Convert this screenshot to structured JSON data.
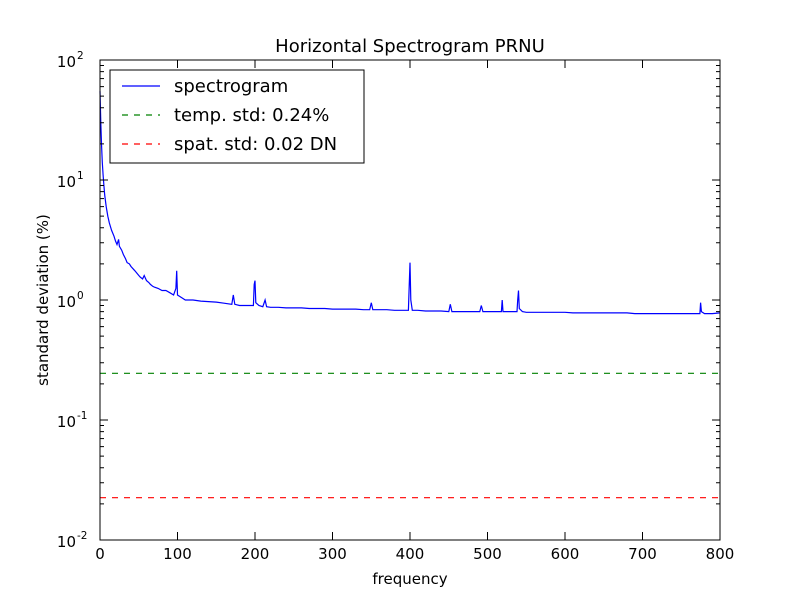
{
  "chart_data": {
    "type": "line",
    "title": "Horizontal Spectrogram PRNU",
    "xlabel": "frequency",
    "ylabel": "standard deviation (%)",
    "xlim": [
      0,
      800
    ],
    "ylim": [
      0.01,
      100
    ],
    "yscale": "log",
    "grid": false,
    "legend_position": "top-left",
    "x_ticks": [
      "0",
      "100",
      "200",
      "300",
      "400",
      "500",
      "600",
      "700",
      "800"
    ],
    "y_ticks": [
      {
        "base": "10",
        "exp": "-2",
        "value": 0.01
      },
      {
        "base": "10",
        "exp": "-1",
        "value": 0.1
      },
      {
        "base": "10",
        "exp": "0",
        "value": 1
      },
      {
        "base": "10",
        "exp": "1",
        "value": 10
      },
      {
        "base": "10",
        "exp": "2",
        "value": 100
      }
    ],
    "series": [
      {
        "name": "spectrogram",
        "style": "solid",
        "color": "#0000ff",
        "points": [
          [
            0,
            55
          ],
          [
            1,
            30
          ],
          [
            2,
            20
          ],
          [
            3,
            14
          ],
          [
            4,
            11
          ],
          [
            5,
            9
          ],
          [
            6,
            7.5
          ],
          [
            8,
            6
          ],
          [
            10,
            5
          ],
          [
            12,
            4.4
          ],
          [
            15,
            3.8
          ],
          [
            18,
            3.4
          ],
          [
            20,
            3.1
          ],
          [
            22,
            2.9
          ],
          [
            24,
            3.2
          ],
          [
            25,
            2.8
          ],
          [
            28,
            2.6
          ],
          [
            30,
            2.4
          ],
          [
            33,
            2.2
          ],
          [
            35,
            2.05
          ],
          [
            38,
            2.0
          ],
          [
            40,
            1.9
          ],
          [
            45,
            1.75
          ],
          [
            50,
            1.6
          ],
          [
            52,
            1.55
          ],
          [
            55,
            1.5
          ],
          [
            57,
            1.6
          ],
          [
            60,
            1.45
          ],
          [
            63,
            1.4
          ],
          [
            65,
            1.35
          ],
          [
            68,
            1.3
          ],
          [
            70,
            1.28
          ],
          [
            75,
            1.25
          ],
          [
            80,
            1.2
          ],
          [
            85,
            1.2
          ],
          [
            90,
            1.15
          ],
          [
            95,
            1.1
          ],
          [
            98,
            1.25
          ],
          [
            99,
            1.75
          ],
          [
            100,
            1.1
          ],
          [
            105,
            1.05
          ],
          [
            110,
            1.0
          ],
          [
            120,
            1.0
          ],
          [
            130,
            0.98
          ],
          [
            140,
            0.97
          ],
          [
            150,
            0.96
          ],
          [
            160,
            0.94
          ],
          [
            170,
            0.92
          ],
          [
            172,
            1.1
          ],
          [
            174,
            0.92
          ],
          [
            180,
            0.9
          ],
          [
            190,
            0.9
          ],
          [
            198,
            0.9
          ],
          [
            199,
            1.35
          ],
          [
            200,
            1.45
          ],
          [
            201,
            0.95
          ],
          [
            205,
            0.9
          ],
          [
            210,
            0.88
          ],
          [
            213,
            1.0
          ],
          [
            215,
            0.88
          ],
          [
            220,
            0.87
          ],
          [
            230,
            0.87
          ],
          [
            240,
            0.86
          ],
          [
            250,
            0.86
          ],
          [
            260,
            0.86
          ],
          [
            270,
            0.85
          ],
          [
            280,
            0.85
          ],
          [
            290,
            0.85
          ],
          [
            300,
            0.84
          ],
          [
            310,
            0.84
          ],
          [
            320,
            0.84
          ],
          [
            330,
            0.84
          ],
          [
            340,
            0.83
          ],
          [
            348,
            0.83
          ],
          [
            350,
            0.95
          ],
          [
            352,
            0.83
          ],
          [
            360,
            0.83
          ],
          [
            370,
            0.83
          ],
          [
            380,
            0.82
          ],
          [
            390,
            0.82
          ],
          [
            398,
            0.82
          ],
          [
            399,
            1.3
          ],
          [
            400,
            2.05
          ],
          [
            401,
            1.0
          ],
          [
            403,
            0.82
          ],
          [
            410,
            0.82
          ],
          [
            420,
            0.81
          ],
          [
            430,
            0.81
          ],
          [
            440,
            0.81
          ],
          [
            450,
            0.8
          ],
          [
            452,
            0.92
          ],
          [
            454,
            0.8
          ],
          [
            460,
            0.8
          ],
          [
            470,
            0.8
          ],
          [
            480,
            0.8
          ],
          [
            490,
            0.8
          ],
          [
            492,
            0.9
          ],
          [
            494,
            0.8
          ],
          [
            500,
            0.8
          ],
          [
            510,
            0.8
          ],
          [
            518,
            0.8
          ],
          [
            519,
            1.0
          ],
          [
            520,
            0.8
          ],
          [
            530,
            0.8
          ],
          [
            538,
            0.8
          ],
          [
            539,
            1.0
          ],
          [
            540,
            1.2
          ],
          [
            541,
            0.85
          ],
          [
            545,
            0.8
          ],
          [
            550,
            0.79
          ],
          [
            560,
            0.79
          ],
          [
            570,
            0.79
          ],
          [
            580,
            0.79
          ],
          [
            590,
            0.79
          ],
          [
            600,
            0.79
          ],
          [
            610,
            0.78
          ],
          [
            620,
            0.78
          ],
          [
            630,
            0.78
          ],
          [
            640,
            0.78
          ],
          [
            650,
            0.78
          ],
          [
            660,
            0.78
          ],
          [
            670,
            0.78
          ],
          [
            680,
            0.78
          ],
          [
            690,
            0.77
          ],
          [
            700,
            0.77
          ],
          [
            710,
            0.77
          ],
          [
            720,
            0.77
          ],
          [
            730,
            0.77
          ],
          [
            740,
            0.77
          ],
          [
            750,
            0.77
          ],
          [
            760,
            0.77
          ],
          [
            770,
            0.77
          ],
          [
            774,
            0.77
          ],
          [
            775,
            0.95
          ],
          [
            776,
            0.8
          ],
          [
            780,
            0.77
          ],
          [
            790,
            0.77
          ],
          [
            800,
            0.78
          ]
        ]
      },
      {
        "name": "temp. std: 0.24%",
        "style": "dashed",
        "color": "#008000",
        "points": [
          [
            0,
            0.245
          ],
          [
            800,
            0.245
          ]
        ]
      },
      {
        "name": "spat. std: 0.02 DN",
        "style": "dashed",
        "color": "#ff0000",
        "points": [
          [
            0,
            0.0225
          ],
          [
            800,
            0.0225
          ]
        ]
      }
    ]
  }
}
